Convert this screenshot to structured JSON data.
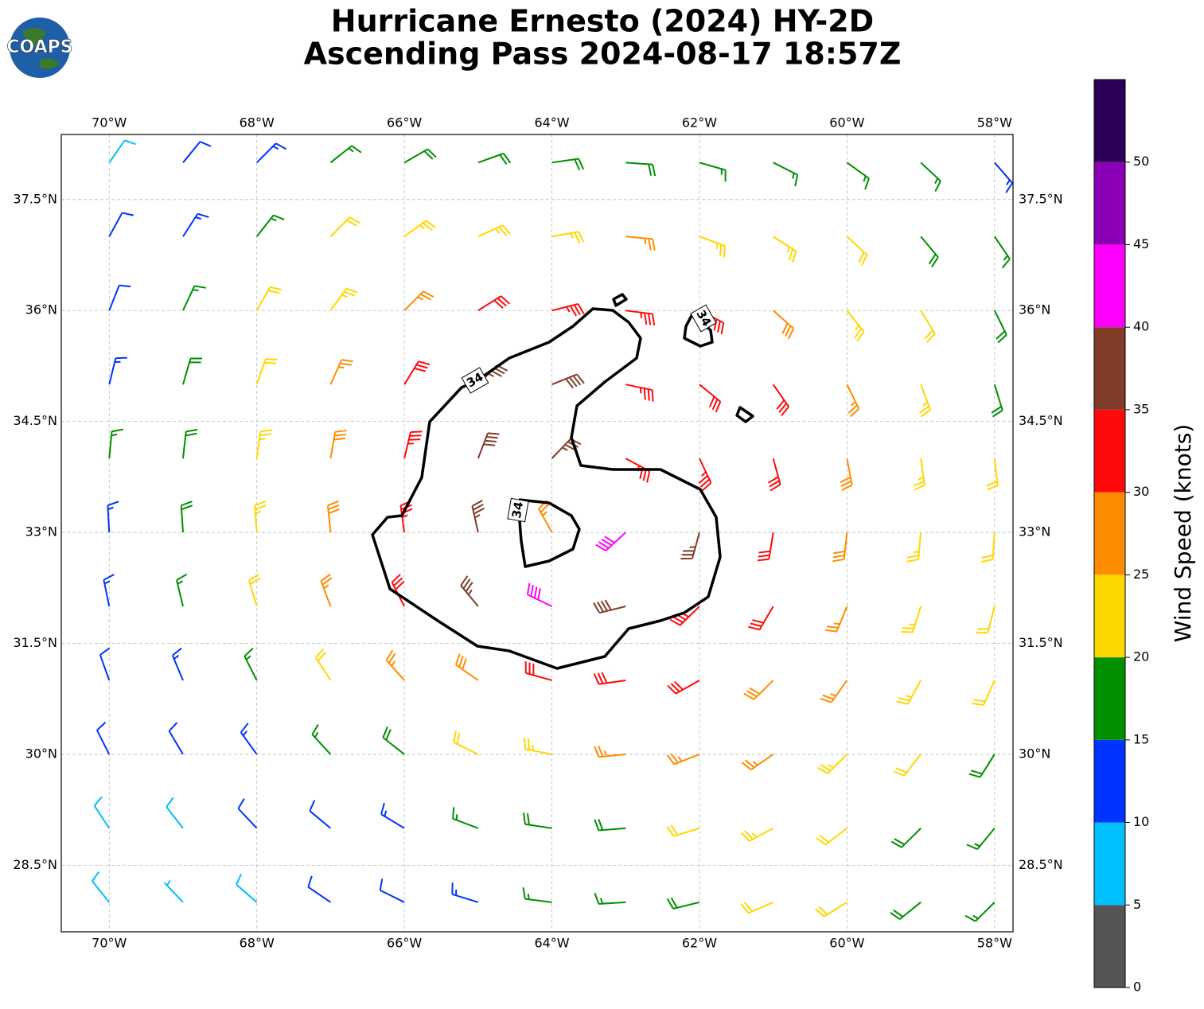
{
  "chart_data": {
    "type": "wind_barbs",
    "title": "Hurricane Ernesto (2024) HY-2D",
    "subtitle": "Ascending Pass 2024-08-17 18:57Z",
    "logo": "COAPS",
    "xlim": [
      -70.65,
      -57.75
    ],
    "ylim": [
      27.6,
      38.38
    ],
    "xticks": [
      {
        "value": -70,
        "label": "70°W"
      },
      {
        "value": -68,
        "label": "68°W"
      },
      {
        "value": -66,
        "label": "66°W"
      },
      {
        "value": -64,
        "label": "64°W"
      },
      {
        "value": -62,
        "label": "62°W"
      },
      {
        "value": -60,
        "label": "60°W"
      },
      {
        "value": -58,
        "label": "58°W"
      }
    ],
    "yticks": [
      {
        "value": 28.5,
        "label": "28.5°N"
      },
      {
        "value": 30,
        "label": "30°N"
      },
      {
        "value": 31.5,
        "label": "31.5°N"
      },
      {
        "value": 33,
        "label": "33°N"
      },
      {
        "value": 34.5,
        "label": "34.5°N"
      },
      {
        "value": 36,
        "label": "36°N"
      },
      {
        "value": 37.5,
        "label": "37.5°N"
      }
    ],
    "grid": true,
    "lons": [
      -70,
      -69,
      -68,
      -67,
      -66,
      -65,
      -64,
      -63,
      -62,
      -61,
      -60,
      -59,
      -58
    ],
    "lats": [
      38,
      37,
      36,
      35,
      34,
      33,
      32,
      31,
      30,
      29,
      28
    ],
    "wind_speed": [
      [
        8,
        12,
        13,
        17,
        18,
        19,
        19,
        18,
        17,
        17,
        16,
        16,
        13
      ],
      [
        11,
        13,
        17,
        21,
        23,
        24,
        24,
        26,
        24,
        23,
        21,
        19,
        17
      ],
      [
        12,
        16,
        20,
        23,
        26,
        31,
        33,
        33,
        31,
        28,
        24,
        21,
        18
      ],
      [
        14,
        18,
        22,
        26,
        31,
        37,
        38,
        34,
        32,
        31,
        27,
        23,
        19
      ],
      [
        15,
        19,
        23,
        28,
        33,
        38,
        37,
        34,
        33,
        32,
        28,
        24,
        21
      ],
      [
        14,
        18,
        23,
        28,
        33,
        37,
        26,
        41,
        36,
        32,
        28,
        24,
        21
      ],
      [
        13,
        17,
        21,
        26,
        32,
        37,
        41,
        38,
        34,
        31,
        27,
        23,
        21
      ],
      [
        11,
        14,
        17,
        21,
        25,
        29,
        31,
        32,
        31,
        29,
        26,
        23,
        21
      ],
      [
        11,
        12,
        14,
        16,
        19,
        22,
        24,
        25,
        26,
        26,
        24,
        22,
        19
      ],
      [
        8,
        9,
        11,
        12,
        14,
        16,
        18,
        19,
        21,
        23,
        22,
        19,
        17
      ],
      [
        8,
        7,
        9,
        11,
        12,
        14,
        16,
        17,
        18,
        21,
        20,
        18,
        16
      ]
    ],
    "contour_level": 34,
    "colorbar": {
      "label": "Wind Speed (knots)",
      "bounds": [
        0,
        5,
        10,
        15,
        20,
        25,
        30,
        35,
        40,
        45,
        50,
        55
      ],
      "colors": [
        "#555555",
        "#00bfff",
        "#0033ff",
        "#009000",
        "#ffd700",
        "#ff8c00",
        "#ff0a0a",
        "#803c28",
        "#ff00ff",
        "#8b00b5",
        "#2b0059"
      ],
      "ticks": [
        0,
        5,
        10,
        15,
        20,
        25,
        30,
        35,
        40,
        45,
        50
      ]
    }
  }
}
